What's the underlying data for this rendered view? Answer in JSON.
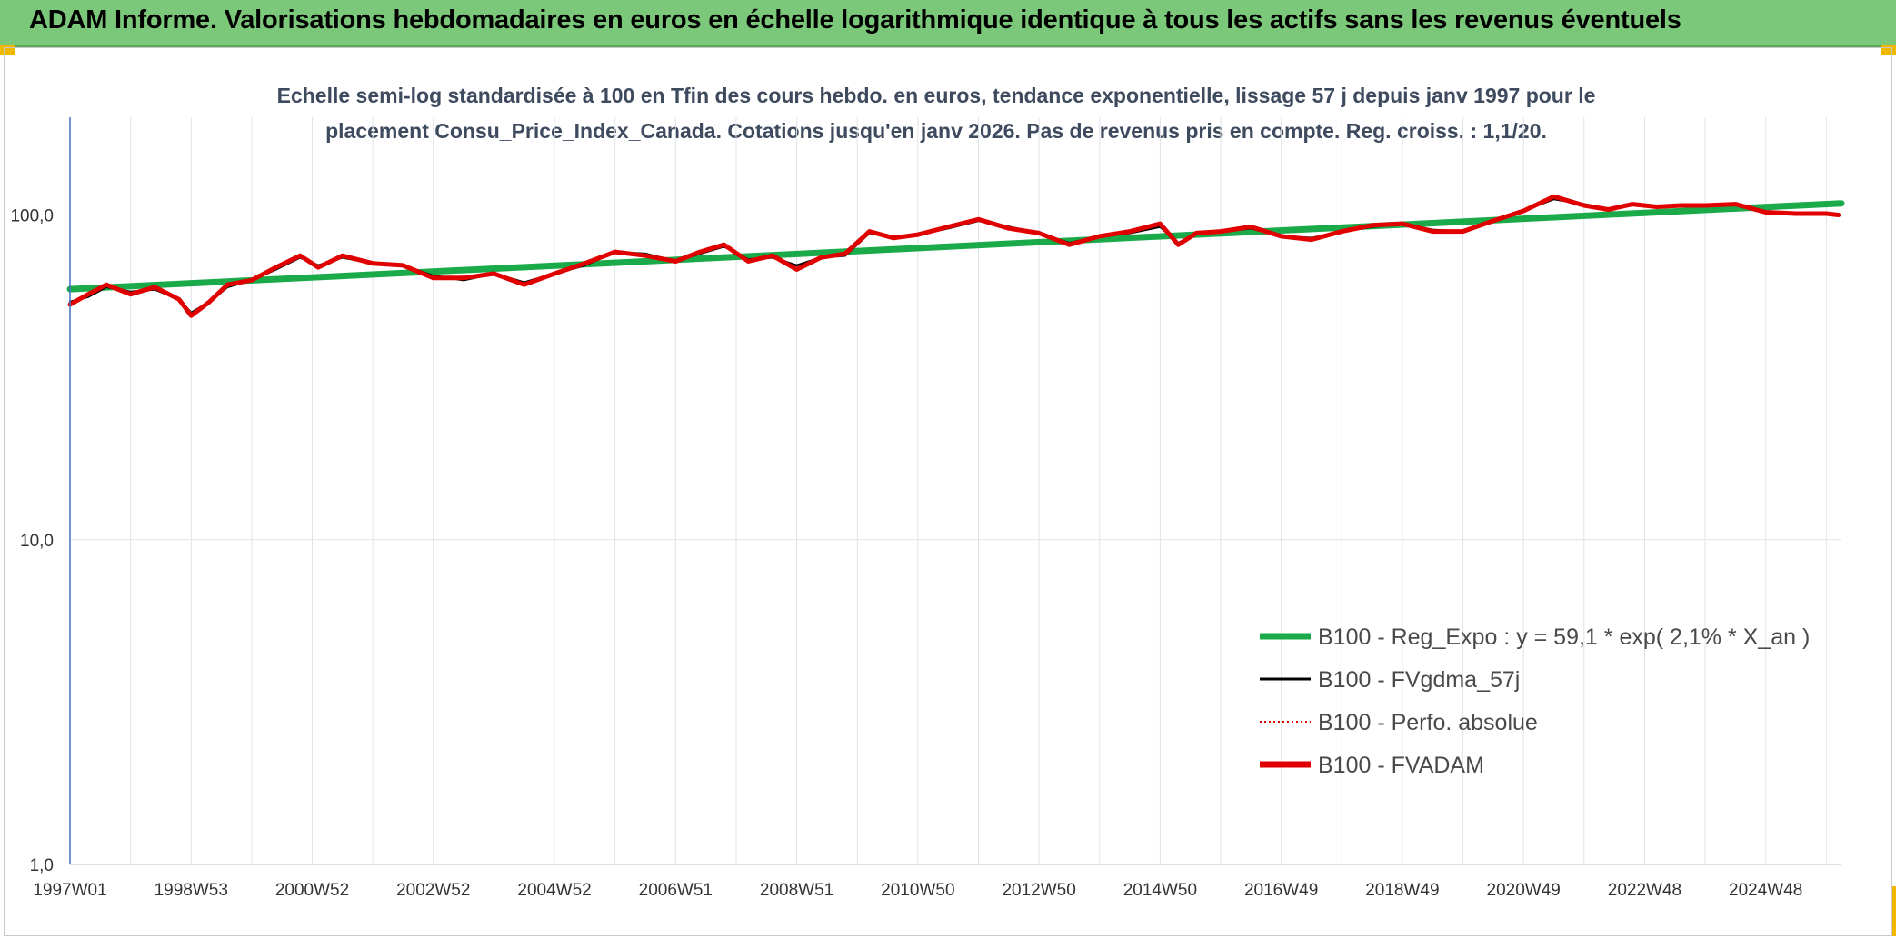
{
  "header": {
    "title": "ADAM Informe. Valorisations hebdomadaires en euros en échelle logarithmique identique à tous les actifs sans les revenus éventuels"
  },
  "chart_data": {
    "type": "line",
    "title_line1": "Echelle semi-log standardisée à 100 en Tfin des cours hebdo. en euros, tendance exponentielle, lissage 57 j depuis janv 1997 pour le",
    "title_line2": "placement Consu_Price_Index_Canada. Cotations jusqu'en janv 2026. Pas de revenus pris en compte. Reg. croiss. : 1,1/20.",
    "y_scale": "log",
    "ylim": [
      1,
      200
    ],
    "y_ticks": [
      {
        "value": 1,
        "label": "1,0"
      },
      {
        "value": 10,
        "label": "10,0"
      },
      {
        "value": 100,
        "label": "100,0"
      }
    ],
    "xlim": [
      1997.0,
      2026.25
    ],
    "x_ticks": [
      {
        "value": 1997.0,
        "label": "1997W01"
      },
      {
        "value": 1999.0,
        "label": "1998W53"
      },
      {
        "value": 2001.0,
        "label": "2000W52"
      },
      {
        "value": 2003.0,
        "label": "2002W52"
      },
      {
        "value": 2005.0,
        "label": "2004W52"
      },
      {
        "value": 2007.0,
        "label": "2006W51"
      },
      {
        "value": 2009.0,
        "label": "2008W51"
      },
      {
        "value": 2011.0,
        "label": "2010W50"
      },
      {
        "value": 2013.0,
        "label": "2012W50"
      },
      {
        "value": 2015.0,
        "label": "2014W50"
      },
      {
        "value": 2017.0,
        "label": "2016W49"
      },
      {
        "value": 2019.0,
        "label": "2018W49"
      },
      {
        "value": 2021.0,
        "label": "2020W49"
      },
      {
        "value": 2023.0,
        "label": "2022W48"
      },
      {
        "value": 2025.0,
        "label": "2024W48"
      }
    ],
    "legend_position": "bottom-right",
    "series": [
      {
        "name": "B100 - Reg_Expo : y = 59,1 * exp( 2,1% *  X_an )",
        "color": "#1aaa4a",
        "style": "solid-thick",
        "x": [
          1997.0,
          2026.25
        ],
        "y": [
          59.1,
          108.6
        ]
      },
      {
        "name": "B100 - FVgdma_57j",
        "color": "#000000",
        "style": "solid",
        "x": [
          1997.0,
          1997.3,
          1997.6,
          1998.0,
          1998.4,
          1998.8,
          1999.0,
          1999.3,
          1999.6,
          2000.0,
          2000.4,
          2000.8,
          2001.1,
          2001.5,
          2002.0,
          2002.5,
          2003.0,
          2003.5,
          2004.0,
          2004.5,
          2005.0,
          2005.5,
          2006.0,
          2006.5,
          2007.0,
          2007.4,
          2007.8,
          2008.2,
          2008.6,
          2009.0,
          2009.4,
          2009.8,
          2010.2,
          2010.6,
          2011.0,
          2011.5,
          2012.0,
          2012.5,
          2013.0,
          2013.5,
          2014.0,
          2014.5,
          2015.0,
          2015.3,
          2015.6,
          2016.0,
          2016.5,
          2017.0,
          2017.5,
          2018.0,
          2018.5,
          2019.0,
          2019.5,
          2020.0,
          2020.5,
          2021.0,
          2021.5,
          2022.0,
          2022.4,
          2022.8,
          2023.2,
          2023.6,
          2024.0,
          2024.5,
          2025.0,
          2025.5,
          2026.0,
          2026.2
        ],
        "y": [
          54,
          56,
          60,
          58,
          59,
          55,
          50,
          54,
          60,
          63,
          68,
          74,
          70,
          74,
          71,
          70,
          65,
          63,
          66,
          62,
          66,
          70,
          77,
          76,
          72,
          76,
          80,
          73,
          74,
          70,
          74,
          75,
          88,
          86,
          87,
          91,
          96,
          92,
          88,
          82,
          86,
          88,
          92,
          82,
          88,
          89,
          91,
          86,
          85,
          89,
          92,
          94,
          90,
          89,
          96,
          103,
          112,
          108,
          104,
          108,
          106,
          107,
          107,
          108,
          102,
          101,
          101,
          100
        ]
      },
      {
        "name": "B100 - Perfo. absolue",
        "color": "#e00000",
        "style": "dotted",
        "x": [
          1997.0,
          1997.3,
          1997.6,
          1998.0,
          1998.4,
          1998.8,
          1999.0,
          1999.3,
          1999.6,
          2000.0,
          2000.4,
          2000.8,
          2001.1,
          2001.5,
          2002.0,
          2002.5,
          2003.0,
          2003.5,
          2004.0,
          2004.5,
          2005.0,
          2005.5,
          2006.0,
          2006.5,
          2007.0,
          2007.4,
          2007.8,
          2008.2,
          2008.6,
          2009.0,
          2009.4,
          2009.8,
          2010.2,
          2010.6,
          2011.0,
          2011.5,
          2012.0,
          2012.5,
          2013.0,
          2013.5,
          2014.0,
          2014.5,
          2015.0,
          2015.3,
          2015.6,
          2016.0,
          2016.5,
          2017.0,
          2017.5,
          2018.0,
          2018.5,
          2019.0,
          2019.5,
          2020.0,
          2020.5,
          2021.0,
          2021.5,
          2022.0,
          2022.4,
          2022.8,
          2023.2,
          2023.6,
          2024.0,
          2024.5,
          2025.0,
          2025.5,
          2026.0,
          2026.2
        ],
        "y": [
          53,
          57,
          61,
          57,
          60,
          55,
          49,
          54,
          61,
          63,
          69,
          75,
          69,
          75,
          71,
          70,
          64,
          64,
          66,
          61,
          66,
          71,
          77,
          75,
          72,
          77,
          81,
          72,
          75,
          68,
          74,
          76,
          89,
          85,
          87,
          92,
          97,
          91,
          88,
          81,
          86,
          89,
          94,
          81,
          88,
          89,
          92,
          86,
          84,
          89,
          93,
          94,
          89,
          89,
          96,
          103,
          114,
          107,
          104,
          108,
          106,
          107,
          107,
          108,
          102,
          101,
          101,
          100
        ]
      },
      {
        "name": "B100 - FVADAM",
        "color": "#e00000",
        "style": "solid-thick",
        "x": [
          1997.0,
          1997.3,
          1997.6,
          1998.0,
          1998.4,
          1998.8,
          1999.0,
          1999.3,
          1999.6,
          2000.0,
          2000.4,
          2000.8,
          2001.1,
          2001.5,
          2002.0,
          2002.5,
          2003.0,
          2003.5,
          2004.0,
          2004.5,
          2005.0,
          2005.5,
          2006.0,
          2006.5,
          2007.0,
          2007.4,
          2007.8,
          2008.2,
          2008.6,
          2009.0,
          2009.4,
          2009.8,
          2010.2,
          2010.6,
          2011.0,
          2011.5,
          2012.0,
          2012.5,
          2013.0,
          2013.5,
          2014.0,
          2014.5,
          2015.0,
          2015.3,
          2015.6,
          2016.0,
          2016.5,
          2017.0,
          2017.5,
          2018.0,
          2018.5,
          2019.0,
          2019.5,
          2020.0,
          2020.5,
          2021.0,
          2021.5,
          2022.0,
          2022.4,
          2022.8,
          2023.2,
          2023.6,
          2024.0,
          2024.5,
          2025.0,
          2025.5,
          2026.0,
          2026.2
        ],
        "y": [
          53,
          57,
          61,
          57,
          60,
          55,
          49,
          54,
          61,
          63,
          69,
          75,
          69,
          75,
          71,
          70,
          64,
          64,
          66,
          61,
          66,
          71,
          77,
          75,
          72,
          77,
          81,
          72,
          75,
          68,
          74,
          76,
          89,
          85,
          87,
          92,
          97,
          91,
          88,
          81,
          86,
          89,
          94,
          81,
          88,
          89,
          92,
          86,
          84,
          89,
          93,
          94,
          89,
          89,
          96,
          103,
          114,
          107,
          104,
          108,
          106,
          107,
          107,
          108,
          102,
          101,
          101,
          100
        ]
      }
    ]
  }
}
